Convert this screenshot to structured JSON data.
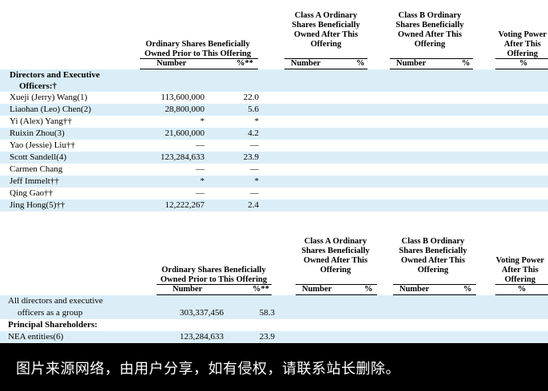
{
  "table1": {
    "headers": {
      "prior": "Ordinary Shares Beneficially Owned Prior to This Offering",
      "class_a": "Class A Ordinary Shares Beneficially Owned After This Offering",
      "class_b": "Class B Ordinary Shares Beneficially Owned After This Offering",
      "voting": "Voting Power After This Offering"
    },
    "sub": {
      "prior_number": "Number",
      "prior_pct": "%**",
      "a_number": "Number",
      "a_pct": "%",
      "b_number": "Number",
      "b_pct": "%",
      "voting_pct": "%"
    },
    "section_label_line1": "Directors and Executive",
    "section_label_line2": "Officers:†",
    "rows": [
      {
        "name": "Xueji (Jerry) Wang(1)",
        "number": "113,600,000",
        "pct": "22.0"
      },
      {
        "name": "Liaohan (Leo) Chen(2)",
        "number": "28,800,000",
        "pct": "5.6"
      },
      {
        "name": "Yi (Alex) Yang††",
        "number": "*",
        "pct": "*"
      },
      {
        "name": "Ruixin Zhou(3)",
        "number": "21,600,000",
        "pct": "4.2"
      },
      {
        "name": "Yao (Jessie) Liu††",
        "number": "—",
        "pct": "—"
      },
      {
        "name": "Scott Sandell(4)",
        "number": "123,284,633",
        "pct": "23.9"
      },
      {
        "name": "Carmen Chang",
        "number": "—",
        "pct": "—"
      },
      {
        "name": "Jeff Immelt††",
        "number": "*",
        "pct": "*"
      },
      {
        "name": "Qing Gao††",
        "number": "—",
        "pct": "—"
      },
      {
        "name": "Jing Hong(5)††",
        "number": "12,222,267",
        "pct": "2.4"
      }
    ]
  },
  "table2": {
    "headers": {
      "prior": "Ordinary Shares Beneficially Owned Prior to This Offering",
      "class_a": "Class A Ordinary Shares Beneficially Owned After This Offering",
      "class_b": "Class B Ordinary Shares Beneficially Owned After This Offering",
      "voting": "Voting Power After This Offering"
    },
    "sub": {
      "prior_number": "Number",
      "prior_pct": "%**",
      "a_number": "Number",
      "a_pct": "%",
      "b_number": "Number",
      "b_pct": "%",
      "voting_pct": "%"
    },
    "group_label_line1": "All directors and executive",
    "group_label_line2": "officers as a group",
    "group_number": "303,337,456",
    "group_pct": "58.3",
    "principal_label": "Principal Shareholders:",
    "nea_name": "NEA entities(6)",
    "nea_number": "123,284,633",
    "nea_pct": "23.9"
  },
  "footer": {
    "text": "图片来源网络，由用户分享，如有侵权，请联系站长删除。"
  }
}
